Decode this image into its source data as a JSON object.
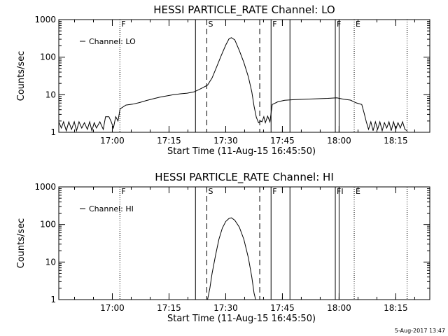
{
  "figure": {
    "footer_timestamp": "5-Aug-2017 13:47"
  },
  "chart_data": [
    {
      "type": "line",
      "title": "HESSI PARTICLE_RATE Channel: LO",
      "xlabel": "Start Time (11-Aug-15 16:45:50)",
      "ylabel": "Counts/sec",
      "yscale": "log",
      "xlim": [
        16.7639,
        18.4
      ],
      "ylim": [
        1,
        1000
      ],
      "x_unit": "hours since 00:00 (11-Aug-15)",
      "xticks": [
        17.0,
        17.25,
        17.5,
        17.75,
        18.0,
        18.25
      ],
      "xtick_labels": [
        "17:00",
        "17:15",
        "17:30",
        "17:45",
        "18:00",
        "18:15"
      ],
      "yticks": [
        1,
        10,
        100,
        1000
      ],
      "ytick_labels": [
        "1",
        "10",
        "100",
        "1000"
      ],
      "legend": {
        "text": "Channel: LO",
        "position": "top-left"
      },
      "event_lines": [
        {
          "x": 17.0333,
          "style": "dotted",
          "label": "F"
        },
        {
          "x": 17.3667,
          "style": "solid",
          "label": ""
        },
        {
          "x": 17.4167,
          "style": "dashed",
          "label": "S"
        },
        {
          "x": 17.65,
          "style": "dashed",
          "label": ""
        },
        {
          "x": 17.7,
          "style": "solid",
          "label": "F"
        },
        {
          "x": 17.7833,
          "style": "solid",
          "label": ""
        },
        {
          "x": 17.9833,
          "style": "solid",
          "label": "F"
        },
        {
          "x": 18.0,
          "style": "solid",
          "label": ""
        },
        {
          "x": 18.0667,
          "style": "dotted",
          "label": "E"
        },
        {
          "x": 18.3,
          "style": "dotted",
          "label": ""
        }
      ],
      "series": [
        {
          "values": [
            [
              16.764,
              1.9
            ],
            [
              16.775,
              1.3
            ],
            [
              16.785,
              1.9
            ],
            [
              16.797,
              1.1
            ],
            [
              16.808,
              1.9
            ],
            [
              16.82,
              1.2
            ],
            [
              16.832,
              1.9
            ],
            [
              16.842,
              1.1
            ],
            [
              16.853,
              1.9
            ],
            [
              16.865,
              1.3
            ],
            [
              16.877,
              1.8
            ],
            [
              16.89,
              1.2
            ],
            [
              16.9,
              1.9
            ],
            [
              16.91,
              1.1
            ],
            [
              16.92,
              1.8
            ],
            [
              16.93,
              1.3
            ],
            [
              16.945,
              1.9
            ],
            [
              16.96,
              1.2
            ],
            [
              16.97,
              2.6
            ],
            [
              16.985,
              2.6
            ],
            [
              16.995,
              1.9
            ],
            [
              17.005,
              1.3
            ],
            [
              17.015,
              2.6
            ],
            [
              17.025,
              2.0
            ],
            [
              17.034,
              4.2
            ],
            [
              17.06,
              5.3
            ],
            [
              17.09,
              5.6
            ],
            [
              17.12,
              6.2
            ],
            [
              17.15,
              7.0
            ],
            [
              17.18,
              7.8
            ],
            [
              17.21,
              8.6
            ],
            [
              17.24,
              9.3
            ],
            [
              17.27,
              10.0
            ],
            [
              17.3,
              10.6
            ],
            [
              17.33,
              11.0
            ],
            [
              17.36,
              11.9
            ],
            [
              17.38,
              13.5
            ],
            [
              17.4,
              15.5
            ],
            [
              17.42,
              18.0
            ],
            [
              17.44,
              28.0
            ],
            [
              17.46,
              55.0
            ],
            [
              17.48,
              110.0
            ],
            [
              17.5,
              210.0
            ],
            [
              17.515,
              310.0
            ],
            [
              17.525,
              330.0
            ],
            [
              17.54,
              290.0
            ],
            [
              17.56,
              150.0
            ],
            [
              17.58,
              72.0
            ],
            [
              17.6,
              30.0
            ],
            [
              17.615,
              12.0
            ],
            [
              17.625,
              5.0
            ],
            [
              17.635,
              2.5
            ],
            [
              17.645,
              1.8
            ],
            [
              17.655,
              2.0
            ],
            [
              17.66,
              1.9
            ],
            [
              17.668,
              2.6
            ],
            [
              17.675,
              1.8
            ],
            [
              17.685,
              2.7
            ],
            [
              17.695,
              1.9
            ],
            [
              17.705,
              5.5
            ],
            [
              17.73,
              6.5
            ],
            [
              17.76,
              7.1
            ],
            [
              17.8,
              7.4
            ],
            [
              17.85,
              7.6
            ],
            [
              17.9,
              7.8
            ],
            [
              17.95,
              8.0
            ],
            [
              17.99,
              8.3
            ],
            [
              18.02,
              7.6
            ],
            [
              18.05,
              7.2
            ],
            [
              18.075,
              6.1
            ],
            [
              18.1,
              5.5
            ],
            [
              18.11,
              3.3
            ],
            [
              18.12,
              1.9
            ],
            [
              18.13,
              1.2
            ],
            [
              18.14,
              1.9
            ],
            [
              18.15,
              1.1
            ],
            [
              18.16,
              1.9
            ],
            [
              18.17,
              1.2
            ],
            [
              18.18,
              1.9
            ],
            [
              18.19,
              1.1
            ],
            [
              18.2,
              1.8
            ],
            [
              18.21,
              1.3
            ],
            [
              18.22,
              1.9
            ],
            [
              18.23,
              1.1
            ],
            [
              18.24,
              1.9
            ],
            [
              18.25,
              1.2
            ],
            [
              18.26,
              1.8
            ],
            [
              18.27,
              1.3
            ],
            [
              18.28,
              1.9
            ],
            [
              18.29,
              1.2
            ],
            [
              18.3,
              1.1
            ]
          ]
        }
      ]
    },
    {
      "type": "line",
      "title": "HESSI PARTICLE_RATE Channel: HI",
      "xlabel": "Start Time (11-Aug-15 16:45:50)",
      "ylabel": "Counts/sec",
      "yscale": "log",
      "xlim": [
        16.7639,
        18.4
      ],
      "ylim": [
        1,
        1000
      ],
      "x_unit": "hours since 00:00 (11-Aug-15)",
      "xticks": [
        17.0,
        17.25,
        17.5,
        17.75,
        18.0,
        18.25
      ],
      "xtick_labels": [
        "17:00",
        "17:15",
        "17:30",
        "17:45",
        "18:00",
        "18:15"
      ],
      "yticks": [
        1,
        10,
        100,
        1000
      ],
      "ytick_labels": [
        "1",
        "10",
        "100",
        "1000"
      ],
      "legend": {
        "text": "Channel: HI",
        "position": "top-left"
      },
      "event_lines": [
        {
          "x": 17.0333,
          "style": "dotted",
          "label": "F"
        },
        {
          "x": 17.3667,
          "style": "solid",
          "label": ""
        },
        {
          "x": 17.4167,
          "style": "dashed",
          "label": "S"
        },
        {
          "x": 17.65,
          "style": "dashed",
          "label": ""
        },
        {
          "x": 17.7,
          "style": "solid",
          "label": "F"
        },
        {
          "x": 17.7833,
          "style": "solid",
          "label": ""
        },
        {
          "x": 17.9833,
          "style": "solid",
          "label": "FI"
        },
        {
          "x": 18.0,
          "style": "solid",
          "label": ""
        },
        {
          "x": 18.0667,
          "style": "dotted",
          "label": "E"
        },
        {
          "x": 18.3,
          "style": "dotted",
          "label": ""
        }
      ],
      "series": [
        {
          "values": [
            [
              17.42,
              1.0
            ],
            [
              17.43,
              2.0
            ],
            [
              17.44,
              5.0
            ],
            [
              17.455,
              15.0
            ],
            [
              17.47,
              40.0
            ],
            [
              17.485,
              80.0
            ],
            [
              17.5,
              120.0
            ],
            [
              17.515,
              145.0
            ],
            [
              17.525,
              150.0
            ],
            [
              17.54,
              130.0
            ],
            [
              17.56,
              85.0
            ],
            [
              17.58,
              40.0
            ],
            [
              17.6,
              13.0
            ],
            [
              17.615,
              4.0
            ],
            [
              17.625,
              1.5
            ],
            [
              17.632,
              1.0
            ]
          ]
        }
      ]
    }
  ]
}
